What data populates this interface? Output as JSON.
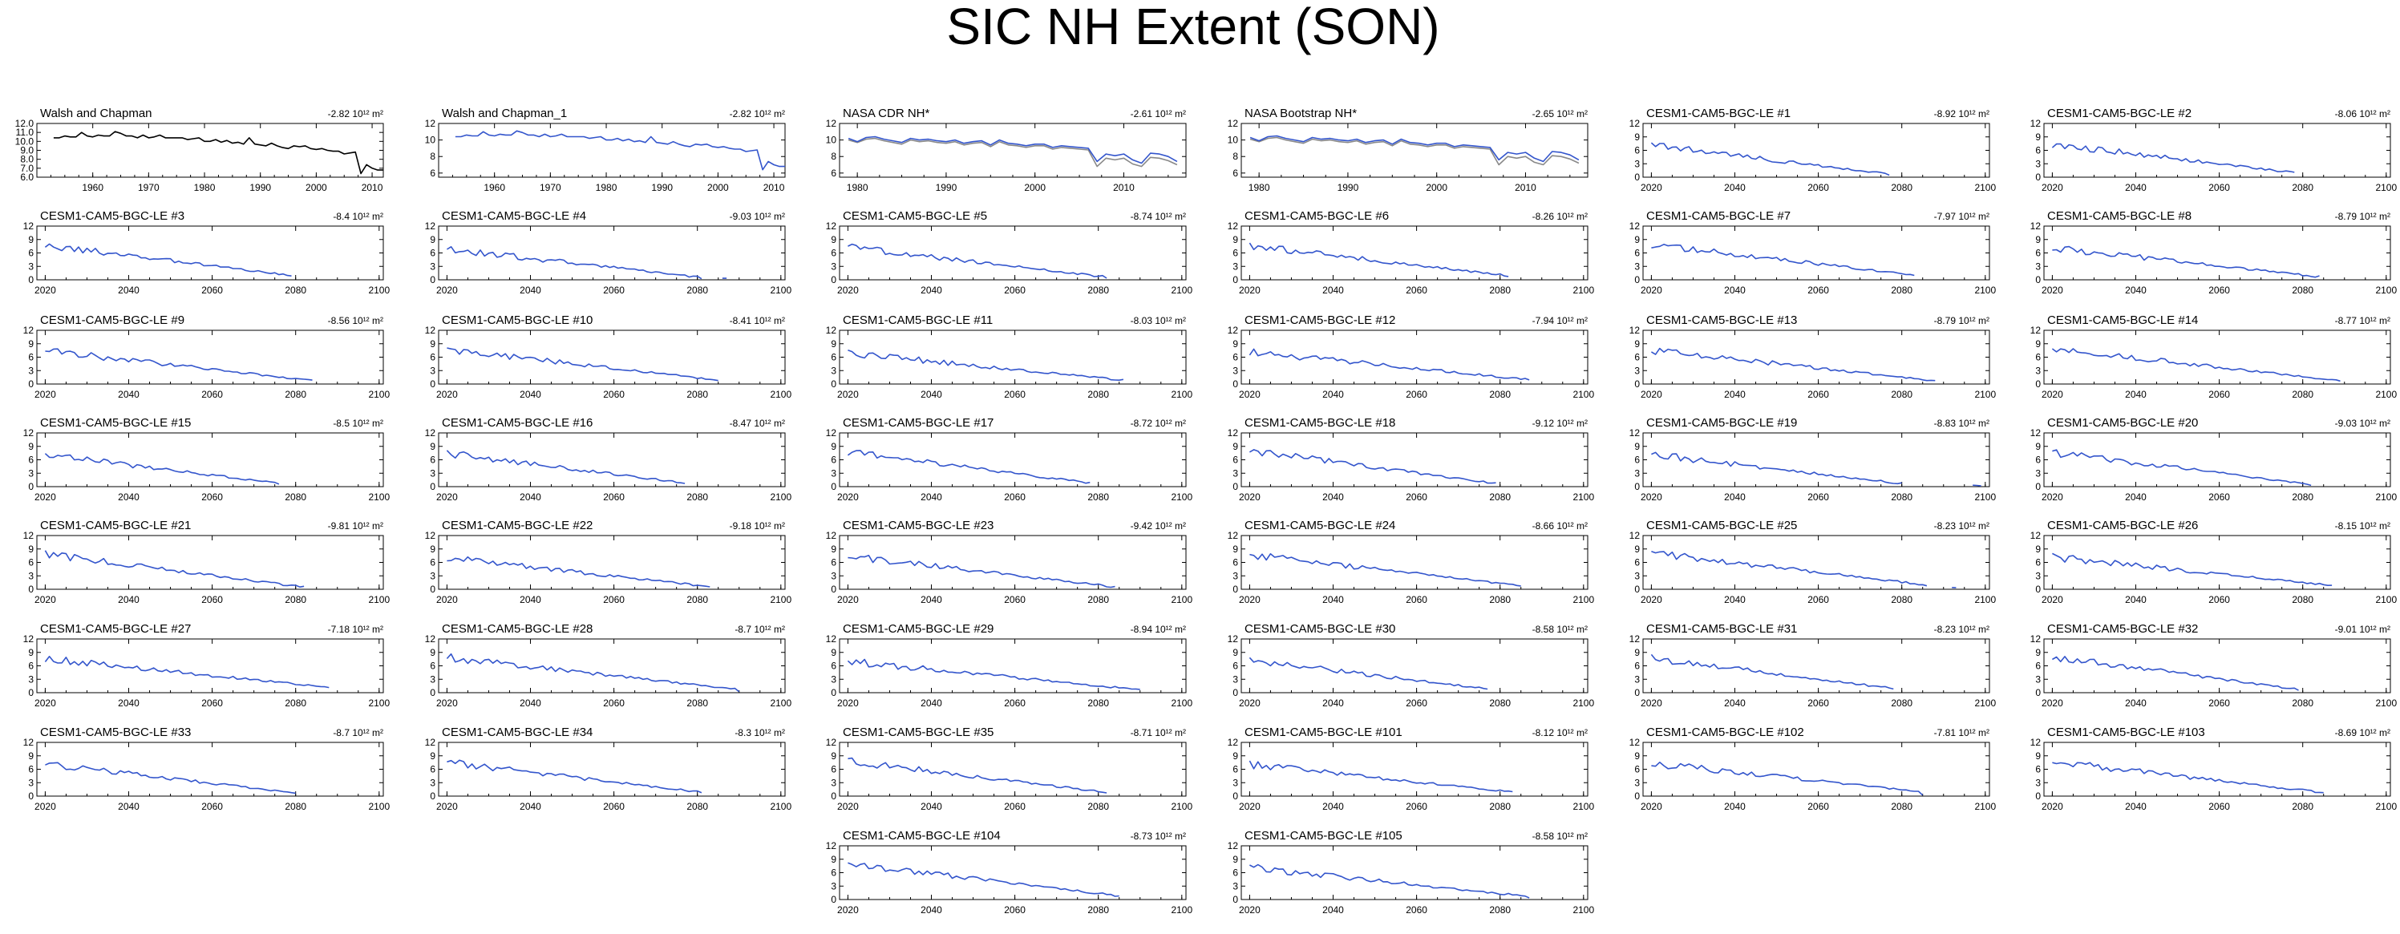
{
  "figure_title": "SIC NH Extent (SON)",
  "trend_unit": "10¹² m²",
  "colors": {
    "obs": "#000000",
    "model": "#3355cc",
    "secondary": "#888888"
  },
  "chart_data": [
    {
      "type": "line",
      "title": "Walsh and Chapman",
      "trend": "-2.82",
      "xlim": [
        1950,
        2012
      ],
      "xticks": [
        1960,
        1970,
        1980,
        1990,
        2000,
        2010
      ],
      "ylim": [
        6,
        12
      ],
      "yticks": [
        "6.0",
        "7.0",
        "8.0",
        "9.0",
        "10.0",
        "11.0",
        "12.0"
      ],
      "color": "obs",
      "series": {
        "x0": 1953,
        "values": [
          10.4,
          10.4,
          10.6,
          10.5,
          10.5,
          11.0,
          10.6,
          10.5,
          10.7,
          10.6,
          10.6,
          11.1,
          10.9,
          10.6,
          10.6,
          10.4,
          10.7,
          10.4,
          10.5,
          10.7,
          10.4,
          10.4,
          10.4,
          10.4,
          10.2,
          10.3,
          10.4,
          10.0,
          10.0,
          10.2,
          9.9,
          10.1,
          9.8,
          9.9,
          9.7,
          10.4,
          9.7,
          9.6,
          9.5,
          9.8,
          9.5,
          9.3,
          9.2,
          9.5,
          9.4,
          9.5,
          9.2,
          9.1,
          9.2,
          9.0,
          8.9,
          8.9,
          8.6,
          8.7,
          8.8,
          6.4,
          7.4,
          7.0,
          6.8,
          6.8
        ]
      }
    },
    {
      "type": "line",
      "title": "Walsh and Chapman_1",
      "trend": "-2.82",
      "xlim": [
        1950,
        2012
      ],
      "xticks": [
        1960,
        1970,
        1980,
        1990,
        2000,
        2010
      ],
      "ylim": [
        5.5,
        12
      ],
      "yticks": [
        "6",
        "8",
        "10",
        "12"
      ],
      "color": "model",
      "series": {
        "x0": 1953,
        "values": [
          10.4,
          10.4,
          10.6,
          10.5,
          10.5,
          11.0,
          10.6,
          10.5,
          10.7,
          10.6,
          10.6,
          11.1,
          10.9,
          10.6,
          10.6,
          10.4,
          10.7,
          10.4,
          10.5,
          10.7,
          10.4,
          10.4,
          10.4,
          10.4,
          10.2,
          10.3,
          10.4,
          10.0,
          10.0,
          10.2,
          9.9,
          10.1,
          9.8,
          9.9,
          9.7,
          10.4,
          9.7,
          9.6,
          9.5,
          9.8,
          9.5,
          9.3,
          9.2,
          9.5,
          9.4,
          9.5,
          9.2,
          9.1,
          9.2,
          9.0,
          8.9,
          8.9,
          8.6,
          8.7,
          8.8,
          6.4,
          7.4,
          7.0,
          6.8,
          6.8
        ]
      }
    },
    {
      "type": "line",
      "title": "NASA CDR NH*",
      "trend": "-2.61",
      "xlim": [
        1978,
        2017
      ],
      "xticks": [
        1980,
        1990,
        2000,
        2010
      ],
      "ylim": [
        5.5,
        12
      ],
      "yticks": [
        "6",
        "8",
        "10",
        "12"
      ],
      "color": "model",
      "series": {
        "x0": 1979,
        "values": [
          10.2,
          9.8,
          10.3,
          10.4,
          10.1,
          9.9,
          9.7,
          10.2,
          10.0,
          10.1,
          9.9,
          9.8,
          10.0,
          9.6,
          9.8,
          9.9,
          9.4,
          10.0,
          9.6,
          9.5,
          9.3,
          9.5,
          9.5,
          9.1,
          9.3,
          9.2,
          9.1,
          9.0,
          7.4,
          8.3,
          8.1,
          8.3,
          7.6,
          7.2,
          8.4,
          8.3,
          8.0,
          7.4
        ]
      },
      "series2": {
        "x0": 1979,
        "values": [
          10.0,
          9.7,
          10.1,
          10.2,
          9.9,
          9.7,
          9.5,
          10.0,
          9.8,
          9.9,
          9.7,
          9.6,
          9.8,
          9.4,
          9.6,
          9.7,
          9.2,
          9.8,
          9.4,
          9.3,
          9.1,
          9.3,
          9.3,
          8.9,
          9.1,
          9.0,
          8.9,
          8.8,
          6.8,
          7.8,
          7.6,
          7.8,
          7.1,
          6.8,
          7.9,
          7.8,
          7.5,
          7.0
        ]
      }
    },
    {
      "type": "line",
      "title": "NASA Bootstrap NH*",
      "trend": "-2.65",
      "xlim": [
        1978,
        2017
      ],
      "xticks": [
        1980,
        1990,
        2000,
        2010
      ],
      "ylim": [
        5.5,
        12
      ],
      "yticks": [
        "6",
        "8",
        "10",
        "12"
      ],
      "color": "model",
      "series": {
        "x0": 1979,
        "values": [
          10.3,
          9.9,
          10.4,
          10.5,
          10.2,
          10.0,
          9.8,
          10.3,
          10.1,
          10.2,
          10.0,
          9.9,
          10.1,
          9.7,
          9.9,
          10.0,
          9.5,
          10.1,
          9.7,
          9.6,
          9.4,
          9.6,
          9.6,
          9.2,
          9.4,
          9.3,
          9.2,
          9.1,
          7.6,
          8.5,
          8.3,
          8.5,
          7.8,
          7.4,
          8.6,
          8.5,
          8.2,
          7.6
        ]
      },
      "series2": {
        "x0": 1979,
        "values": [
          10.1,
          9.8,
          10.2,
          10.3,
          10.0,
          9.8,
          9.6,
          10.1,
          9.9,
          10.0,
          9.8,
          9.7,
          9.9,
          9.5,
          9.7,
          9.8,
          9.3,
          9.9,
          9.5,
          9.4,
          9.2,
          9.4,
          9.4,
          9.0,
          9.2,
          9.1,
          9.0,
          8.9,
          7.0,
          8.0,
          7.8,
          8.0,
          7.3,
          7.0,
          8.1,
          8.0,
          7.7,
          7.2
        ]
      }
    },
    {
      "type": "line",
      "title": "CESM1-CAM5-BGC-LE #1",
      "trend": "-8.92"
    },
    {
      "type": "line",
      "title": "CESM1-CAM5-BGC-LE #2",
      "trend": "-8.06"
    },
    {
      "type": "line",
      "title": "CESM1-CAM5-BGC-LE #3",
      "trend": "-8.4"
    },
    {
      "type": "line",
      "title": "CESM1-CAM5-BGC-LE #4",
      "trend": "-9.03"
    },
    {
      "type": "line",
      "title": "CESM1-CAM5-BGC-LE #5",
      "trend": "-8.74"
    },
    {
      "type": "line",
      "title": "CESM1-CAM5-BGC-LE #6",
      "trend": "-8.26"
    },
    {
      "type": "line",
      "title": "CESM1-CAM5-BGC-LE #7",
      "trend": "-7.97"
    },
    {
      "type": "line",
      "title": "CESM1-CAM5-BGC-LE #8",
      "trend": "-8.79"
    },
    {
      "type": "line",
      "title": "CESM1-CAM5-BGC-LE #9",
      "trend": "-8.56"
    },
    {
      "type": "line",
      "title": "CESM1-CAM5-BGC-LE #10",
      "trend": "-8.41"
    },
    {
      "type": "line",
      "title": "CESM1-CAM5-BGC-LE #11",
      "trend": "-8.03"
    },
    {
      "type": "line",
      "title": "CESM1-CAM5-BGC-LE #12",
      "trend": "-7.94"
    },
    {
      "type": "line",
      "title": "CESM1-CAM5-BGC-LE #13",
      "trend": "-8.79"
    },
    {
      "type": "line",
      "title": "CESM1-CAM5-BGC-LE #14",
      "trend": "-8.77"
    },
    {
      "type": "line",
      "title": "CESM1-CAM5-BGC-LE #15",
      "trend": "-8.5"
    },
    {
      "type": "line",
      "title": "CESM1-CAM5-BGC-LE #16",
      "trend": "-8.47"
    },
    {
      "type": "line",
      "title": "CESM1-CAM5-BGC-LE #17",
      "trend": "-8.72"
    },
    {
      "type": "line",
      "title": "CESM1-CAM5-BGC-LE #18",
      "trend": "-9.12"
    },
    {
      "type": "line",
      "title": "CESM1-CAM5-BGC-LE #19",
      "trend": "-8.83"
    },
    {
      "type": "line",
      "title": "CESM1-CAM5-BGC-LE #20",
      "trend": "-9.03"
    },
    {
      "type": "line",
      "title": "CESM1-CAM5-BGC-LE #21",
      "trend": "-9.81"
    },
    {
      "type": "line",
      "title": "CESM1-CAM5-BGC-LE #22",
      "trend": "-9.18"
    },
    {
      "type": "line",
      "title": "CESM1-CAM5-BGC-LE #23",
      "trend": "-9.42"
    },
    {
      "type": "line",
      "title": "CESM1-CAM5-BGC-LE #24",
      "trend": "-8.66"
    },
    {
      "type": "line",
      "title": "CESM1-CAM5-BGC-LE #25",
      "trend": "-8.23"
    },
    {
      "type": "line",
      "title": "CESM1-CAM5-BGC-LE #26",
      "trend": "-8.15"
    },
    {
      "type": "line",
      "title": "CESM1-CAM5-BGC-LE #27",
      "trend": "-7.18"
    },
    {
      "type": "line",
      "title": "CESM1-CAM5-BGC-LE #28",
      "trend": "-8.7"
    },
    {
      "type": "line",
      "title": "CESM1-CAM5-BGC-LE #29",
      "trend": "-8.94"
    },
    {
      "type": "line",
      "title": "CESM1-CAM5-BGC-LE #30",
      "trend": "-8.58"
    },
    {
      "type": "line",
      "title": "CESM1-CAM5-BGC-LE #31",
      "trend": "-8.23"
    },
    {
      "type": "line",
      "title": "CESM1-CAM5-BGC-LE #32",
      "trend": "-9.01"
    },
    {
      "type": "line",
      "title": "CESM1-CAM5-BGC-LE #33",
      "trend": "-8.7"
    },
    {
      "type": "line",
      "title": "CESM1-CAM5-BGC-LE #34",
      "trend": "-8.3"
    },
    {
      "type": "line",
      "title": "CESM1-CAM5-BGC-LE #35",
      "trend": "-8.71"
    },
    {
      "type": "line",
      "title": "CESM1-CAM5-BGC-LE #101",
      "trend": "-8.12"
    },
    {
      "type": "line",
      "title": "CESM1-CAM5-BGC-LE #102",
      "trend": "-7.81"
    },
    {
      "type": "line",
      "title": "CESM1-CAM5-BGC-LE #103",
      "trend": "-8.69"
    },
    {
      "type": "line",
      "title": "CESM1-CAM5-BGC-LE #104",
      "trend": "-8.73"
    },
    {
      "type": "line",
      "title": "CESM1-CAM5-BGC-LE #105",
      "trend": "-8.58"
    }
  ],
  "model_defaults": {
    "xlim": [
      2018,
      2101
    ],
    "xticks": [
      2020,
      2040,
      2060,
      2080,
      2100
    ],
    "ylim": [
      0,
      12
    ],
    "yticks": [
      "0",
      "3",
      "6",
      "9",
      "12"
    ],
    "x0": 2020,
    "start_value": 7.5,
    "ice_free_year": 2082,
    "color": "model"
  }
}
